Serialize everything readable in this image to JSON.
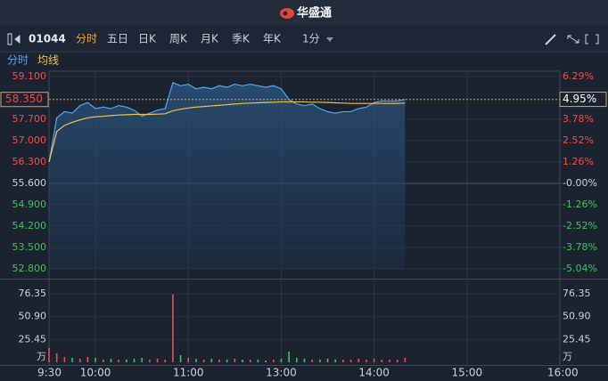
{
  "header": {
    "title": "华盛通"
  },
  "toolbar": {
    "symbol": "01044",
    "tabs": [
      "分时",
      "五日",
      "日K",
      "周K",
      "月K",
      "季K",
      "年K"
    ],
    "interval": "1分"
  },
  "chart_data": {
    "type": "line",
    "x": [
      "9:30",
      "9:35",
      "9:40",
      "9:45",
      "9:50",
      "9:55",
      "10:00",
      "10:05",
      "10:10",
      "10:15",
      "10:20",
      "10:25",
      "10:30",
      "10:35",
      "10:40",
      "10:45",
      "10:50",
      "10:55",
      "11:00",
      "11:05",
      "11:10",
      "11:15",
      "11:20",
      "11:25",
      "11:30",
      "11:35",
      "11:40",
      "11:45",
      "11:50",
      "11:55",
      "12:00",
      "13:05",
      "13:10",
      "13:15",
      "13:20",
      "13:25",
      "13:30",
      "13:35",
      "13:40",
      "13:45",
      "13:50",
      "13:55",
      "14:00",
      "14:05",
      "14:10",
      "14:15",
      "14:20"
    ],
    "series": [
      {
        "name": "分时",
        "color": "#4fa6ee",
        "values": [
          56.3,
          57.75,
          57.95,
          57.9,
          58.15,
          58.25,
          58.05,
          58.1,
          58.05,
          58.15,
          58.1,
          58.0,
          57.8,
          57.9,
          58.0,
          58.05,
          58.9,
          58.8,
          58.85,
          58.7,
          58.75,
          58.7,
          58.8,
          58.75,
          58.85,
          58.8,
          58.85,
          58.8,
          58.75,
          58.8,
          58.7,
          58.35,
          58.2,
          58.15,
          58.2,
          58.05,
          57.95,
          57.9,
          57.95,
          57.95,
          58.05,
          58.1,
          58.25,
          58.3,
          58.3,
          58.3,
          58.35
        ]
      },
      {
        "name": "均线",
        "color": "#f2c14e",
        "values": [
          56.3,
          57.3,
          57.5,
          57.6,
          57.68,
          57.75,
          57.78,
          57.8,
          57.82,
          57.84,
          57.85,
          57.86,
          57.86,
          57.86,
          57.87,
          57.88,
          57.98,
          58.03,
          58.07,
          58.1,
          58.12,
          58.14,
          58.16,
          58.18,
          58.2,
          58.22,
          58.23,
          58.24,
          58.25,
          58.26,
          58.27,
          58.27,
          58.27,
          58.27,
          58.26,
          58.26,
          58.25,
          58.24,
          58.23,
          58.22,
          58.22,
          58.22,
          58.22,
          58.22,
          58.22,
          58.22,
          58.23
        ]
      }
    ],
    "sessions": [
      [
        "9:30",
        "12:00"
      ],
      [
        "13:00",
        "16:00"
      ]
    ],
    "xticks": [
      "9:30",
      "10:00",
      "11:00",
      "13:00",
      "14:00",
      "15:00",
      "16:00"
    ],
    "ylim": [
      52.8,
      59.1
    ],
    "yticks": [
      {
        "value": 59.1,
        "label": "59.100"
      },
      {
        "value": 57.7,
        "label": "57.700"
      },
      {
        "value": 57.0,
        "label": "57.000"
      },
      {
        "value": 56.3,
        "label": "56.300"
      },
      {
        "value": 55.6,
        "label": "55.600"
      },
      {
        "value": 54.9,
        "label": "54.900"
      },
      {
        "value": 54.2,
        "label": "54.200"
      },
      {
        "value": 53.5,
        "label": "53.500"
      },
      {
        "value": 52.8,
        "label": "52.800"
      }
    ],
    "y2lim": [
      -5.04,
      6.29
    ],
    "y2ticks": [
      {
        "value": 6.29,
        "label": "6.29%"
      },
      {
        "value": 3.78,
        "label": "3.78%"
      },
      {
        "value": 2.52,
        "label": "2.52%"
      },
      {
        "value": 1.26,
        "label": "1.26%"
      },
      {
        "value": 0,
        "label": "-0.00%"
      },
      {
        "value": -1.26,
        "label": "-1.26%"
      },
      {
        "value": -2.52,
        "label": "-2.52%"
      },
      {
        "value": -3.78,
        "label": "-3.78%"
      },
      {
        "value": -5.04,
        "label": "-5.04%"
      }
    ],
    "last": {
      "price": {
        "value": 58.35,
        "label": "58.350"
      },
      "change": {
        "value": 4.95,
        "label": "4.95%"
      }
    },
    "up_color": "#f04a4a",
    "down_color": "#3fbf5f",
    "flat_color": "#c8d0dc",
    "volume": {
      "unit": "万",
      "values": [
        16,
        10,
        6,
        5,
        4,
        6,
        5,
        3,
        4,
        3,
        3,
        4,
        5,
        3,
        4,
        3,
        76,
        8,
        5,
        4,
        3,
        4,
        3,
        3,
        4,
        3,
        3,
        3,
        2,
        3,
        4,
        12,
        5,
        4,
        3,
        3,
        4,
        3,
        3,
        3,
        4,
        3,
        4,
        3,
        3,
        3,
        5
      ],
      "ylim": [
        0,
        76.35
      ],
      "yticks": [
        76.35,
        {
          "value": 50.9,
          "label": "50.90"
        },
        25.45
      ]
    }
  }
}
